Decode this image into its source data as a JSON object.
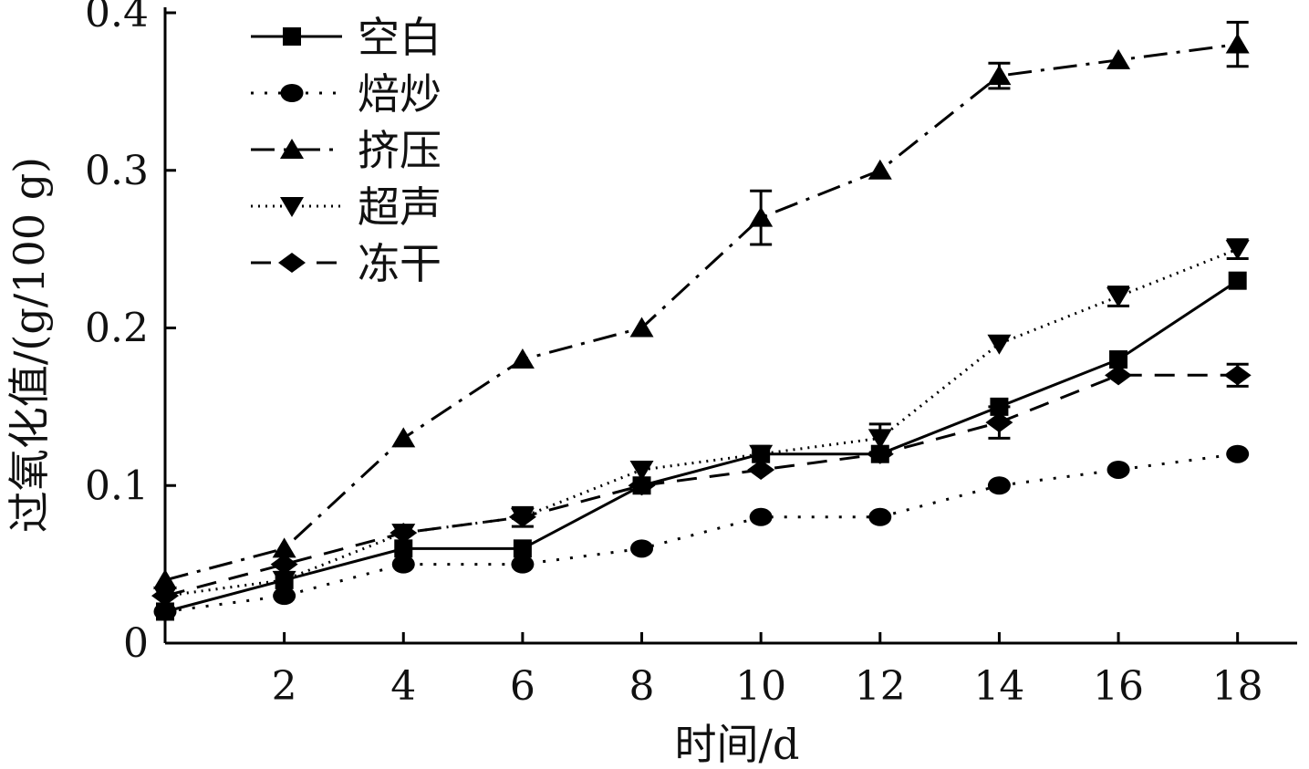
{
  "chart_data": {
    "type": "line",
    "xlabel": "时间/d",
    "ylabel": "过氧化值/(g/100 g)",
    "xlim": [
      0,
      19
    ],
    "ylim": [
      0,
      0.4
    ],
    "x_ticks": [
      2,
      4,
      6,
      8,
      10,
      12,
      14,
      16,
      18
    ],
    "x_tick_labels": [
      "2",
      "4",
      "6",
      "8",
      "10",
      "12",
      "14",
      "16",
      "18"
    ],
    "y_ticks": [
      0,
      0.1,
      0.2,
      0.3,
      0.4
    ],
    "y_tick_labels": [
      "0",
      "0.1",
      "0.2",
      "0.3",
      "0.4"
    ],
    "grid": false,
    "legend_position": "top-left",
    "x": [
      0,
      2,
      4,
      6,
      8,
      10,
      12,
      14,
      16,
      18
    ],
    "series": [
      {
        "name": "空白",
        "marker": "square",
        "line_style": "solid",
        "values": [
          0.02,
          0.04,
          0.06,
          0.06,
          0.1,
          0.12,
          0.12,
          0.15,
          0.18,
          0.23
        ],
        "errors": [
          0,
          0,
          0,
          0,
          0,
          0,
          0,
          0,
          0,
          0
        ]
      },
      {
        "name": "焙炒",
        "marker": "circle",
        "line_style": "dotted",
        "values": [
          0.02,
          0.03,
          0.05,
          0.05,
          0.06,
          0.08,
          0.08,
          0.1,
          0.11,
          0.12
        ],
        "errors": [
          0,
          0,
          0,
          0,
          0,
          0,
          0,
          0,
          0,
          0
        ]
      },
      {
        "name": "挤压",
        "marker": "triangle-up",
        "line_style": "dash-dot",
        "values": [
          0.04,
          0.06,
          0.13,
          0.18,
          0.2,
          0.27,
          0.3,
          0.36,
          0.37,
          0.38
        ],
        "errors": [
          0,
          0,
          0,
          0,
          0,
          0.017,
          0,
          0.008,
          0,
          0.014
        ]
      },
      {
        "name": "超声",
        "marker": "triangle-down",
        "line_style": "fine-dotted",
        "values": [
          0.03,
          0.04,
          0.07,
          0.08,
          0.11,
          0.12,
          0.13,
          0.19,
          0.22,
          0.25
        ],
        "errors": [
          0,
          0,
          0,
          0,
          0,
          0,
          0.009,
          0,
          0.006,
          0.006
        ]
      },
      {
        "name": "冻干",
        "marker": "diamond",
        "line_style": "dashed",
        "values": [
          0.03,
          0.05,
          0.07,
          0.08,
          0.1,
          0.11,
          0.12,
          0.14,
          0.17,
          0.17
        ],
        "errors": [
          0,
          0,
          0,
          0.006,
          0,
          0,
          0,
          0.01,
          0,
          0.007
        ]
      }
    ]
  }
}
